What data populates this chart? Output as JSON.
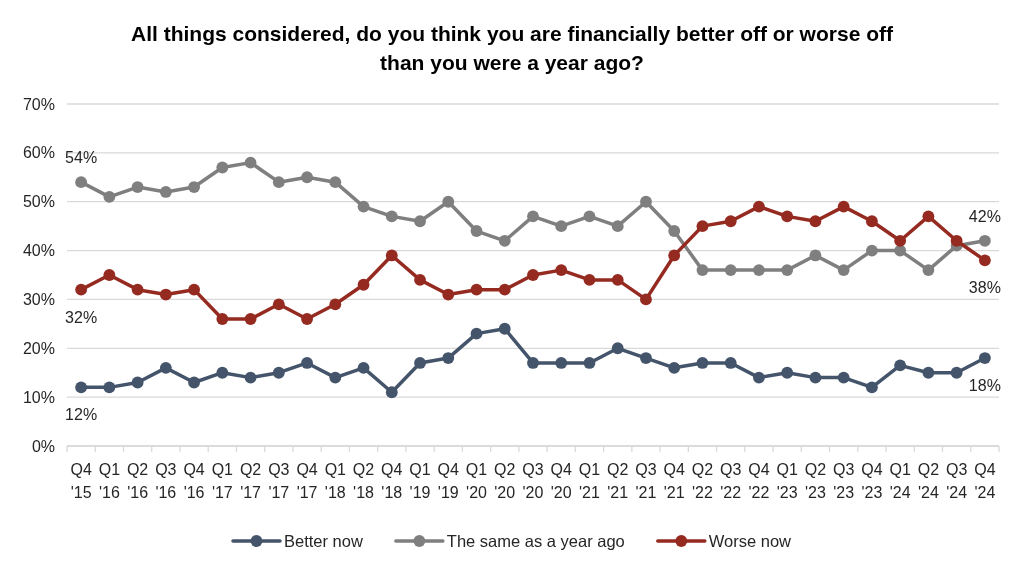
{
  "chart_data": {
    "type": "line",
    "title": "All things considered, do you think you are financially better off or worse off than you were a year ago?",
    "categories": [
      "Q4 '15",
      "Q1 '16",
      "Q2 '16",
      "Q3 '16",
      "Q4 '16",
      "Q1 '17",
      "Q2 '17",
      "Q3 '17",
      "Q4 '17",
      "Q1 '18",
      "Q2 '18",
      "Q4 '18",
      "Q1 '19",
      "Q4 '19",
      "Q1 '20",
      "Q2 '20",
      "Q3 '20",
      "Q4 '20",
      "Q1 '21",
      "Q2 '21",
      "Q3 '21",
      "Q4 '21",
      "Q2 '22",
      "Q3 '22",
      "Q4 '22",
      "Q1 '23",
      "Q2 '23",
      "Q3 '23",
      "Q4 '23",
      "Q1 '24",
      "Q2 '24",
      "Q3 '24",
      "Q4 '24"
    ],
    "series": [
      {
        "name": "Better now",
        "color": "#44546a",
        "values": [
          12,
          12,
          13,
          16,
          13,
          15,
          14,
          15,
          17,
          14,
          16,
          11,
          17,
          18,
          23,
          24,
          17,
          17,
          17,
          20,
          18,
          16,
          17,
          17,
          14,
          15,
          14,
          14,
          12,
          16.5,
          15,
          15,
          18
        ],
        "value_labels": [
          "12%",
          null,
          null,
          null,
          null,
          null,
          null,
          null,
          null,
          null,
          null,
          null,
          null,
          null,
          null,
          null,
          null,
          null,
          null,
          null,
          null,
          null,
          null,
          null,
          null,
          null,
          null,
          null,
          null,
          null,
          null,
          null,
          "18%"
        ]
      },
      {
        "name": "The same as a year ago",
        "color": "#7f7f7f",
        "values": [
          54,
          51,
          53,
          52,
          53,
          57,
          58,
          54,
          55,
          54,
          49,
          47,
          46,
          50,
          44,
          42,
          47,
          45,
          47,
          45,
          50,
          44,
          36,
          36,
          36,
          36,
          39,
          36,
          40,
          40,
          36,
          41,
          42
        ],
        "value_labels": [
          "54%",
          null,
          null,
          null,
          null,
          null,
          null,
          null,
          null,
          null,
          null,
          null,
          null,
          null,
          null,
          null,
          null,
          null,
          null,
          null,
          null,
          null,
          null,
          null,
          null,
          null,
          null,
          null,
          null,
          null,
          null,
          null,
          "42%"
        ]
      },
      {
        "name": "Worse now",
        "color": "#952a20",
        "values": [
          32,
          35,
          32,
          31,
          32,
          26,
          26,
          29,
          26,
          29,
          33,
          39,
          34,
          31,
          32,
          32,
          35,
          36,
          34,
          34,
          30,
          39,
          45,
          46,
          49,
          47,
          46,
          49,
          46,
          42,
          47,
          42,
          38
        ],
        "value_labels": [
          "32%",
          null,
          null,
          null,
          null,
          null,
          null,
          null,
          null,
          null,
          null,
          null,
          null,
          null,
          null,
          null,
          null,
          null,
          null,
          null,
          null,
          null,
          null,
          null,
          null,
          null,
          null,
          null,
          null,
          null,
          null,
          null,
          "38%"
        ]
      }
    ],
    "ylim": [
      0,
      70
    ],
    "yticks": [
      {
        "value": 0,
        "label": "0%"
      },
      {
        "value": 10,
        "label": "10%"
      },
      {
        "value": 20,
        "label": "20%"
      },
      {
        "value": 30,
        "label": "30%"
      },
      {
        "value": 40,
        "label": "40%"
      },
      {
        "value": 50,
        "label": "50%"
      },
      {
        "value": 60,
        "label": "60%"
      },
      {
        "value": 70,
        "label": "70%"
      }
    ],
    "grid": "y",
    "legend": "bottom",
    "marker": "circle"
  }
}
